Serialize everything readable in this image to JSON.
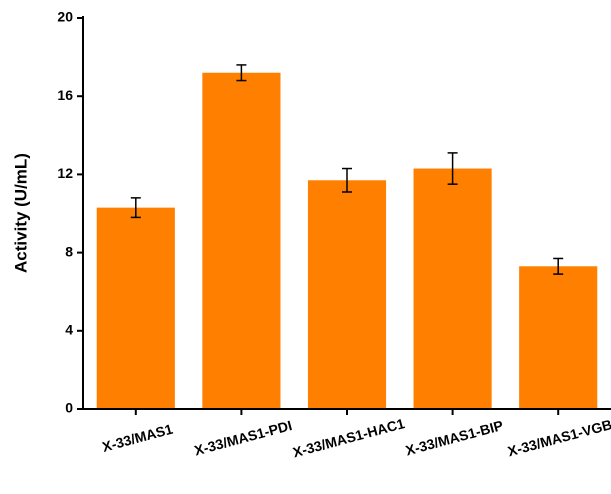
{
  "chart_data": {
    "type": "bar",
    "y_label": "Activity (U/mL)",
    "categories": [
      "X-33/MAS1",
      "X-33/MAS1-PDI",
      "X-33/MAS1-HAC1",
      "X-33/MAS1-BIP",
      "X-33/MAS1-VGB"
    ],
    "values": [
      10.3,
      17.2,
      11.7,
      12.3,
      7.3
    ],
    "errors": [
      0.5,
      0.4,
      0.6,
      0.8,
      0.4
    ],
    "color": "#ff8000",
    "ylim": [
      0,
      20
    ],
    "yticks": [
      0,
      4,
      8,
      12,
      16,
      20
    ],
    "grid": false
  }
}
